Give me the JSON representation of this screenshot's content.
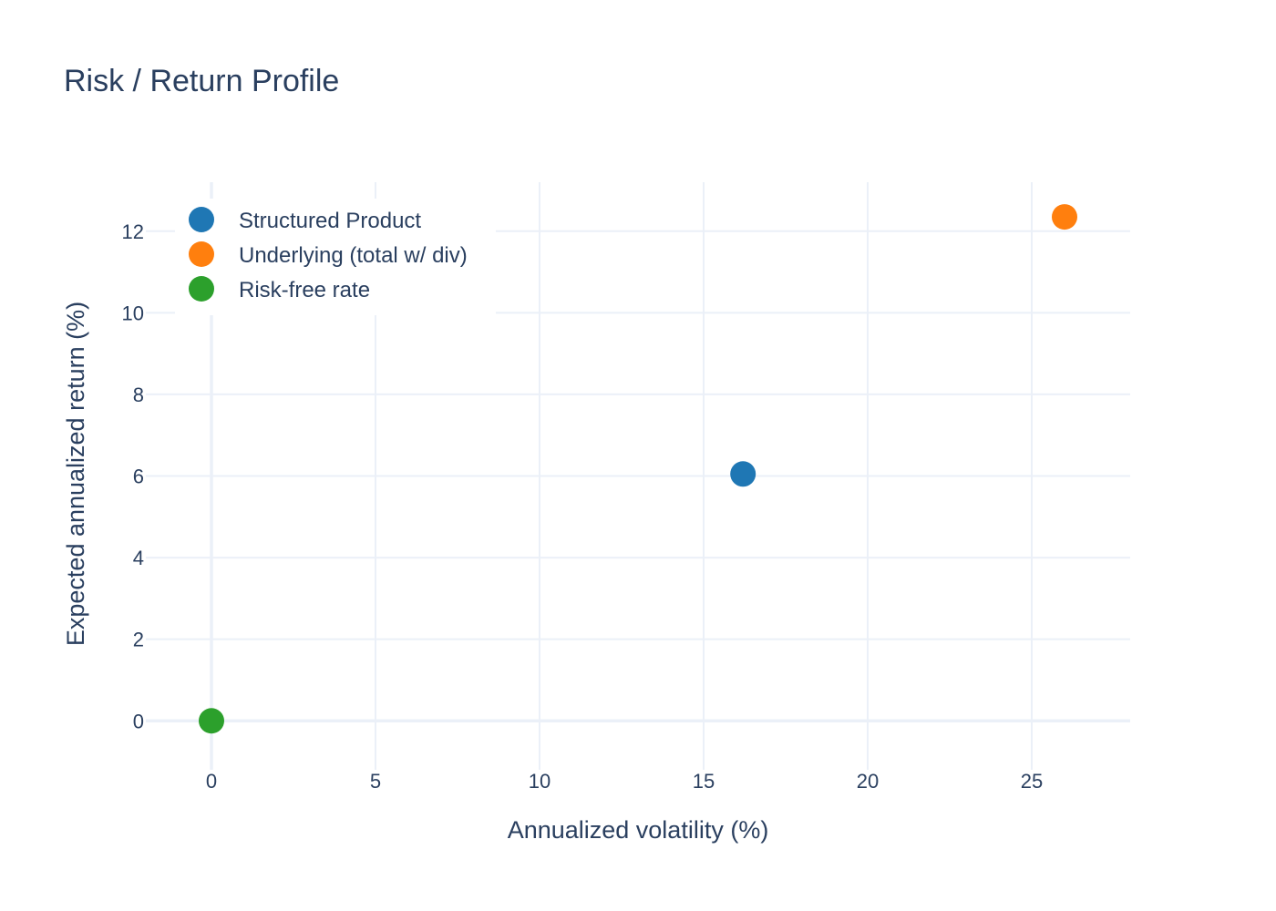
{
  "chart_data": {
    "type": "scatter",
    "title": "Risk / Return Profile",
    "xlabel": "Annualized volatility (%)",
    "ylabel": "Expected annualized return (%)",
    "xlim": [
      -2,
      28
    ],
    "ylim": [
      -1.2,
      13.2
    ],
    "x_ticks": [
      0,
      5,
      10,
      15,
      20,
      25
    ],
    "y_ticks": [
      0,
      2,
      4,
      6,
      8,
      10,
      12
    ],
    "grid": true,
    "legend_position": "top-left",
    "series": [
      {
        "name": "Structured Product",
        "color": "#1f77b4",
        "x": [
          16.2
        ],
        "y": [
          6.05
        ]
      },
      {
        "name": "Underlying (total w/ div)",
        "color": "#ff7f0e",
        "x": [
          26.0
        ],
        "y": [
          12.35
        ]
      },
      {
        "name": "Risk-free rate",
        "color": "#2ca02c",
        "x": [
          0.0
        ],
        "y": [
          0.0
        ]
      }
    ],
    "colors": {
      "grid": "#ebf0f8",
      "text": "#2a3f5f",
      "background": "#ffffff"
    }
  }
}
